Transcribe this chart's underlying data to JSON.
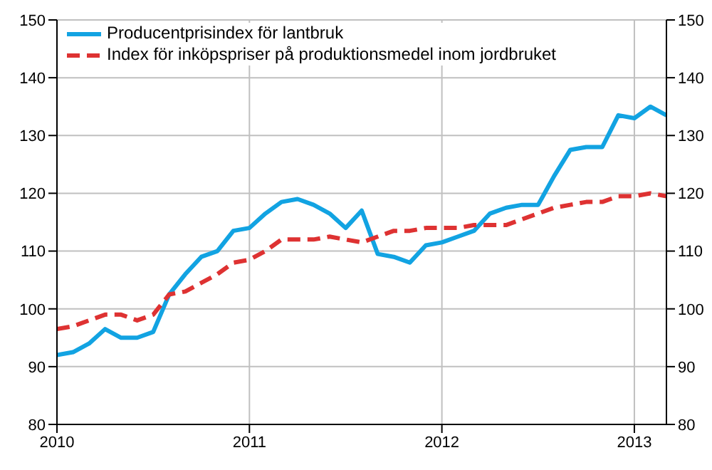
{
  "chart_data": {
    "type": "line",
    "x": [
      "2010-01",
      "2010-02",
      "2010-03",
      "2010-04",
      "2010-05",
      "2010-06",
      "2010-07",
      "2010-08",
      "2010-09",
      "2010-10",
      "2010-11",
      "2010-12",
      "2011-01",
      "2011-02",
      "2011-03",
      "2011-04",
      "2011-05",
      "2011-06",
      "2011-07",
      "2011-08",
      "2011-09",
      "2011-10",
      "2011-11",
      "2011-12",
      "2012-01",
      "2012-02",
      "2012-03",
      "2012-04",
      "2012-05",
      "2012-06",
      "2012-07",
      "2012-08",
      "2012-09",
      "2012-10",
      "2012-11",
      "2012-12",
      "2013-01",
      "2013-02",
      "2013-03"
    ],
    "series": [
      {
        "name": "Producentprisindex för lantbruk",
        "color": "#12a3e2",
        "line_style": "solid",
        "values": [
          92,
          92.5,
          94,
          96.5,
          95,
          95,
          96,
          102.5,
          106,
          109,
          110,
          113.5,
          114,
          116.5,
          118.5,
          119,
          118,
          116.5,
          114,
          117,
          109.5,
          109,
          108,
          111,
          111.5,
          112.5,
          113.5,
          116.5,
          117.5,
          118,
          118,
          123,
          127.5,
          128,
          128,
          133.5,
          133,
          135,
          133.5
        ]
      },
      {
        "name": "Index för inköpspriser på produktionsmedel inom jordbruket",
        "color": "#de3232",
        "line_style": "dashed",
        "values": [
          96.5,
          97,
          98,
          99,
          99,
          98,
          99,
          102.5,
          103,
          104.5,
          106,
          108,
          108.5,
          110,
          112,
          112,
          112,
          112.5,
          112,
          111.5,
          112.5,
          113.5,
          113.5,
          114,
          114,
          114,
          114.5,
          114.5,
          114.5,
          115.5,
          116.5,
          117.5,
          118,
          118.5,
          118.5,
          119.5,
          119.5,
          120,
          119.5
        ]
      }
    ],
    "xlim": [
      "2010-01",
      "2013-03"
    ],
    "xticks": [
      "2010",
      "2011",
      "2012",
      "2013"
    ],
    "ylim": [
      80,
      150
    ],
    "yticks": [
      80,
      90,
      100,
      110,
      120,
      130,
      140,
      150
    ],
    "y2lim": [
      80,
      150
    ],
    "y2ticks": [
      80,
      90,
      100,
      110,
      120,
      130,
      140,
      150
    ],
    "grid": true,
    "legend": "top left",
    "marker": "none"
  }
}
